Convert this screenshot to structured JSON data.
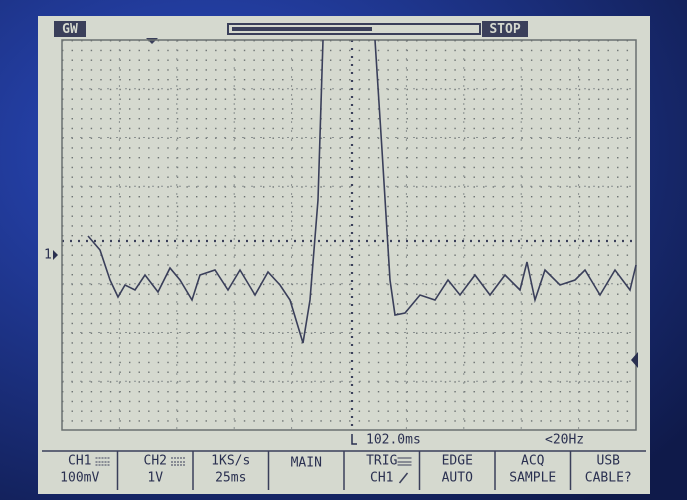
{
  "header": {
    "brand": "GW",
    "status": "STOP"
  },
  "channel_marker": "1",
  "status_line": {
    "trigger_time": "102.0ms",
    "frequency": "<20Hz"
  },
  "menu": [
    {
      "top": "CH1",
      "bottom": "100mV"
    },
    {
      "top": "CH2",
      "bottom": "1V"
    },
    {
      "top": "1KS/s",
      "bottom": "25ms"
    },
    {
      "top": "MAIN"
    },
    {
      "top": "TRIG",
      "bottom": "CH1"
    },
    {
      "top": "EDGE",
      "bottom": "AUTO"
    },
    {
      "top": "ACQ",
      "bottom": "SAMPLE"
    },
    {
      "top": "USB",
      "bottom": "CABLE?"
    }
  ]
}
